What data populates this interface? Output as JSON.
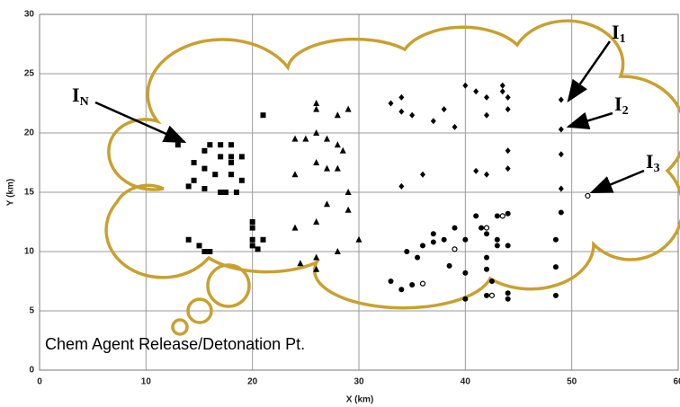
{
  "chart_data": {
    "type": "scatter",
    "xlabel": "X (km)",
    "ylabel": "Y (km)",
    "xlim": [
      0,
      60
    ],
    "xticks": [
      0,
      10,
      20,
      30,
      40,
      50,
      60
    ],
    "ylim": [
      0,
      30
    ],
    "yticks": [
      0,
      5,
      10,
      15,
      20,
      25,
      30
    ],
    "grid": true,
    "series": [
      {
        "marker": "square",
        "color": "#000000",
        "x": [
          13,
          14.5,
          14.5,
          14,
          15.5,
          15.5,
          15.5,
          16,
          16,
          15,
          17,
          17,
          17,
          18,
          18,
          18,
          18.5,
          19,
          19,
          20,
          20,
          20,
          20.5,
          21,
          21,
          16.5,
          14,
          15.5,
          20,
          18,
          17.5
        ],
        "y": [
          19,
          17.5,
          16,
          15.5,
          18.5,
          17,
          15.3,
          19,
          10,
          10.5,
          19,
          18,
          15,
          19,
          18,
          17.5,
          15,
          18,
          16,
          12.5,
          11,
          10.5,
          10.2,
          21.5,
          11,
          16.5,
          11,
          10,
          12,
          16.5,
          15
        ]
      },
      {
        "marker": "triangle",
        "color": "#000000",
        "x": [
          24,
          24,
          24,
          24.5,
          26,
          26,
          26,
          26,
          26,
          26,
          27,
          27,
          28,
          28,
          28,
          28,
          29,
          29,
          29,
          30,
          25,
          27,
          26,
          28.5
        ],
        "y": [
          19.5,
          16.5,
          12,
          9,
          22,
          20,
          17.5,
          12.5,
          9.5,
          8.5,
          19.5,
          14,
          21.5,
          19,
          17,
          10,
          22,
          15,
          13.5,
          11,
          19.5,
          17,
          22.5,
          18.5
        ]
      },
      {
        "marker": "diamond",
        "color": "#000000",
        "x": [
          33,
          34,
          35,
          37,
          38,
          39,
          40,
          41,
          41,
          42,
          42,
          42,
          43.5,
          44,
          44,
          44,
          36,
          34,
          49,
          49,
          49,
          49,
          43.5,
          44,
          34
        ],
        "y": [
          22.5,
          23,
          21.5,
          21,
          22,
          20.5,
          24,
          23.5,
          16.8,
          23,
          21.5,
          16.5,
          24,
          22,
          18.5,
          17,
          16.5,
          15.5,
          22.8,
          20.3,
          18.2,
          15.3,
          23.5,
          23,
          21.8
        ]
      },
      {
        "marker": "circle",
        "color": "#000000",
        "x": [
          33,
          34,
          35,
          36,
          35.5,
          37,
          38,
          38.5,
          39,
          40,
          40,
          40,
          41,
          41.5,
          42,
          42,
          42,
          42,
          43,
          43,
          43,
          44,
          44,
          44,
          44,
          48.5,
          48.5,
          48.5,
          49,
          34.5,
          37,
          42.5
        ],
        "y": [
          7.5,
          6.8,
          7.2,
          10.5,
          9.5,
          10.8,
          11,
          8.8,
          12,
          11,
          8.2,
          6,
          13,
          12,
          11.5,
          9.5,
          8.5,
          6.3,
          13,
          11,
          10.5,
          13.2,
          10.5,
          6.5,
          6,
          11,
          8.7,
          6.3,
          13.3,
          10,
          11.5,
          7.5
        ]
      },
      {
        "marker": "open-circle",
        "color": "#000000",
        "x": [
          36,
          39,
          43.5,
          42,
          42.5,
          51.5
        ],
        "y": [
          7.3,
          10.2,
          13,
          12,
          6.3,
          14.7
        ]
      }
    ],
    "annotations": [
      {
        "text": "I",
        "subscript": "N"
      },
      {
        "text": "I",
        "subscript": "1"
      },
      {
        "text": "I",
        "subscript": "2"
      },
      {
        "text": "I",
        "subscript": "3"
      }
    ],
    "caption": "Chem Agent Release/Detonation Pt."
  }
}
